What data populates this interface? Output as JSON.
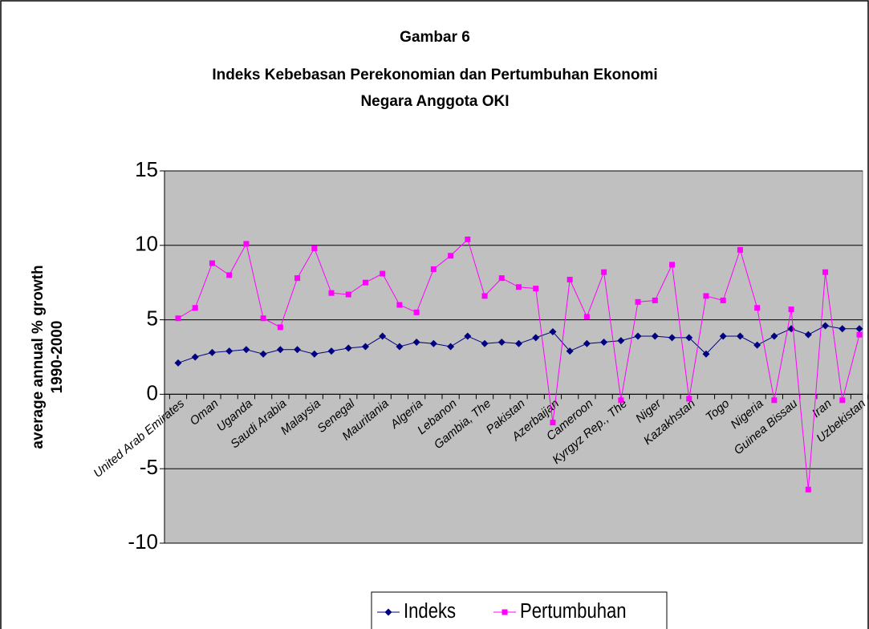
{
  "chart_data": {
    "type": "line",
    "title": [
      "Gambar 6",
      "Indeks Kebebasan Perekonomian dan Pertumbuhan Ekonomi",
      "Negara Anggota OKI"
    ],
    "y_label": [
      "average annual % growth",
      "1990-2000"
    ],
    "categories": [
      "United Arab Emirates",
      null,
      "Oman",
      null,
      "Uganda",
      null,
      "Saudi Arabia",
      null,
      "Malaysia",
      null,
      "Senegal",
      null,
      "Mauritania",
      null,
      "Algeria",
      null,
      "Lebanon",
      null,
      "Gambia, The",
      null,
      "Pakistan",
      null,
      "Azerbaijan",
      null,
      "Cameroon",
      null,
      "Kyrgyz Rep., The",
      null,
      "Niger",
      null,
      "Kazakhstan",
      null,
      "Togo",
      null,
      "Nigeria",
      null,
      "Guinea Bissau",
      null,
      "Iran",
      null,
      "Uzbekistan"
    ],
    "series": [
      {
        "name": "Indeks",
        "color": "#000080",
        "marker": "diamond",
        "values": [
          2.1,
          2.5,
          2.8,
          2.9,
          3.0,
          2.7,
          3.0,
          3.0,
          2.7,
          2.9,
          3.1,
          3.2,
          3.9,
          3.2,
          3.5,
          3.4,
          3.2,
          3.9,
          3.4,
          3.5,
          3.4,
          3.8,
          4.2,
          2.9,
          3.4,
          3.5,
          3.6,
          3.9,
          3.9,
          3.8,
          3.8,
          2.7,
          3.9,
          3.9,
          3.3,
          3.9,
          4.4,
          4.0,
          4.6,
          4.4,
          4.4
        ]
      },
      {
        "name": "Pertumbuhan",
        "color": "#ff00ff",
        "marker": "square",
        "values": [
          5.1,
          5.8,
          8.8,
          8.0,
          10.1,
          5.1,
          4.5,
          7.8,
          9.8,
          6.8,
          6.7,
          7.5,
          8.1,
          6.0,
          5.5,
          8.4,
          9.3,
          10.4,
          6.6,
          7.8,
          7.2,
          7.1,
          -1.9,
          7.7,
          5.2,
          8.2,
          -0.4,
          6.2,
          6.3,
          8.7,
          -0.3,
          6.6,
          6.3,
          9.7,
          5.8,
          -0.4,
          5.7,
          -6.4,
          8.2,
          -0.4,
          4.0
        ]
      }
    ],
    "ylim": [
      -10,
      15
    ],
    "yticks": [
      -10,
      -5,
      0,
      5,
      10,
      15
    ],
    "grid": true,
    "legend": "bottom"
  }
}
